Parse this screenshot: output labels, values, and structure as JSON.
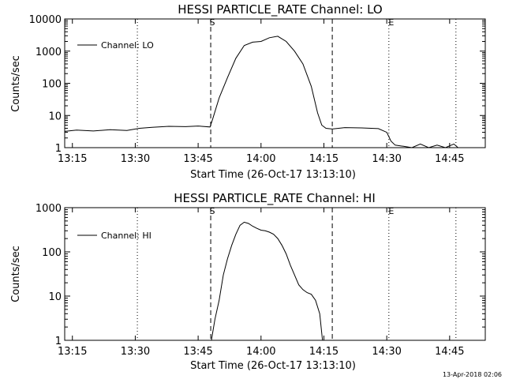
{
  "chart_data": [
    {
      "type": "line",
      "title": "HESSI PARTICLE_RATE Channel: LO",
      "xlabel": "Start Time (26-Oct-17 13:13:10)",
      "ylabel": "Counts/sec",
      "yscale": "log",
      "ylim": [
        1,
        10000
      ],
      "xlim": [
        "13:13:10",
        "14:53:30"
      ],
      "x_tick_labels": [
        "13:15",
        "13:30",
        "13:45",
        "14:00",
        "14:15",
        "14:30",
        "14:45"
      ],
      "y_tick_labels": [
        "1",
        "10",
        "100",
        "1000",
        "10000"
      ],
      "legend": {
        "position": "top-left",
        "entries": [
          "Channel: LO"
        ]
      },
      "markers": {
        "dashed": [
          {
            "label": "S",
            "time": "13:48:00"
          },
          {
            "label": "",
            "time": "14:17:00"
          }
        ],
        "dotted": [
          {
            "label": "",
            "time": "13:30:30"
          },
          {
            "label": "E",
            "time": "14:30:30"
          },
          {
            "label": "",
            "time": "14:46:30"
          }
        ]
      },
      "series": [
        {
          "name": "Channel: LO",
          "x": [
            "13:13:10",
            "13:16:00",
            "13:20:00",
            "13:24:00",
            "13:28:00",
            "13:31:00",
            "13:34:00",
            "13:38:00",
            "13:42:00",
            "13:45:00",
            "13:47:50",
            "13:48:30",
            "13:50:00",
            "13:52:00",
            "13:54:00",
            "13:56:00",
            "13:58:00",
            "14:00:00",
            "14:02:00",
            "14:04:00",
            "14:06:00",
            "14:08:00",
            "14:10:00",
            "14:12:00",
            "14:13:30",
            "14:14:30",
            "14:15:30",
            "14:17:00",
            "14:20:00",
            "14:24:00",
            "14:28:00",
            "14:30:00",
            "14:31:00",
            "14:32:00",
            "14:34:00",
            "14:36:00",
            "14:38:00",
            "14:40:00",
            "14:42:00",
            "14:44:00",
            "14:46:00",
            "14:47:00"
          ],
          "values": [
            3.2,
            3.5,
            3.3,
            3.6,
            3.4,
            4.0,
            4.3,
            4.6,
            4.5,
            4.7,
            4.4,
            8,
            35,
            150,
            600,
            1500,
            1900,
            2000,
            2600,
            2900,
            2000,
            1000,
            400,
            80,
            12,
            5,
            4.0,
            3.8,
            4.2,
            4.1,
            3.9,
            3.0,
            1.6,
            1.2,
            1.1,
            1,
            1.3,
            1,
            1.2,
            1,
            1.3,
            1
          ]
        }
      ]
    },
    {
      "type": "line",
      "title": "HESSI PARTICLE_RATE Channel: HI",
      "xlabel": "Start Time (26-Oct-17 13:13:10)",
      "ylabel": "Counts/sec",
      "yscale": "log",
      "ylim": [
        1,
        1000
      ],
      "xlim": [
        "13:13:10",
        "14:53:30"
      ],
      "x_tick_labels": [
        "13:15",
        "13:30",
        "13:45",
        "14:00",
        "14:15",
        "14:30",
        "14:45"
      ],
      "y_tick_labels": [
        "1",
        "10",
        "100",
        "1000"
      ],
      "legend": {
        "position": "top-left",
        "entries": [
          "Channel: HI"
        ]
      },
      "markers": {
        "dashed": [
          {
            "label": "S",
            "time": "13:48:00"
          },
          {
            "label": "",
            "time": "14:17:00"
          }
        ],
        "dotted": [
          {
            "label": "",
            "time": "13:30:30"
          },
          {
            "label": "E",
            "time": "14:30:30"
          },
          {
            "label": "",
            "time": "14:46:30"
          }
        ]
      },
      "series": [
        {
          "name": "Channel: HI",
          "x": [
            "13:48:10",
            "13:49:00",
            "13:50:00",
            "13:51:00",
            "13:52:00",
            "13:53:00",
            "13:54:00",
            "13:55:00",
            "13:56:00",
            "13:57:00",
            "13:58:00",
            "13:59:00",
            "14:00:00",
            "14:01:00",
            "14:02:00",
            "14:03:00",
            "14:04:00",
            "14:05:00",
            "14:06:00",
            "14:07:00",
            "14:08:00",
            "14:09:00",
            "14:10:00",
            "14:11:00",
            "14:12:00",
            "14:13:00",
            "14:14:00",
            "14:14:40"
          ],
          "values": [
            1,
            3,
            8,
            30,
            70,
            140,
            250,
            400,
            470,
            440,
            380,
            340,
            310,
            300,
            280,
            250,
            200,
            140,
            90,
            50,
            30,
            18,
            14,
            12,
            11,
            8,
            4,
            1
          ]
        }
      ]
    }
  ],
  "footer": {
    "date_stamp": "13-Apr-2018 02:06"
  }
}
